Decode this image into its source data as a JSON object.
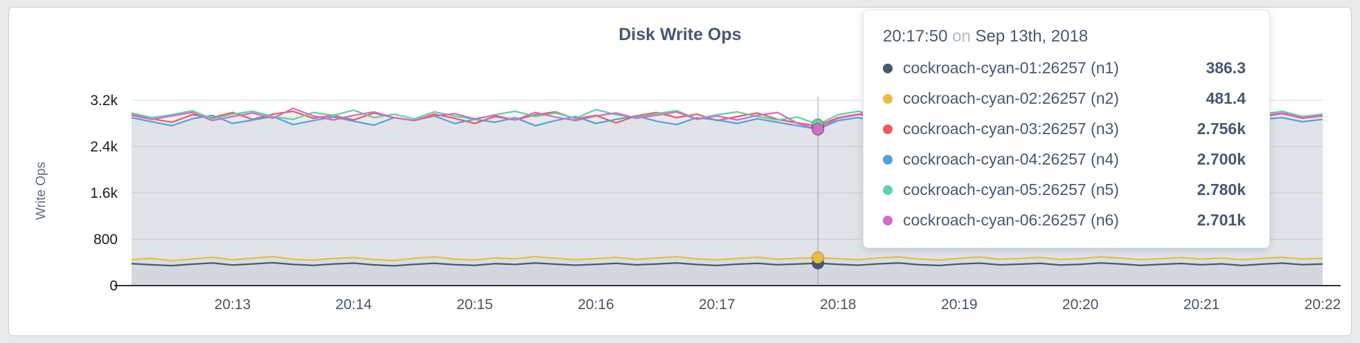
{
  "page": {
    "background": "#e9eaeb"
  },
  "chart_data": {
    "type": "line",
    "title": "Disk Write Ops",
    "ylabel": "Write Ops",
    "ylim": [
      0,
      3200
    ],
    "x_domain_seconds": [
      730,
      1320
    ],
    "sample_interval_seconds": 10,
    "grid": true,
    "area_fill": "rgba(118,126,138,0.055)",
    "axis_color": "#2e2e2e",
    "y_ticks": [
      {
        "value": 0,
        "label": "0"
      },
      {
        "value": 800,
        "label": "800"
      },
      {
        "value": 1600,
        "label": "1.6k"
      },
      {
        "value": 2400,
        "label": "2.4k"
      },
      {
        "value": 3200,
        "label": "3.2k"
      }
    ],
    "x_tick_seconds": [
      780,
      840,
      900,
      960,
      1020,
      1080,
      1140,
      1200,
      1260,
      1320
    ],
    "x_tick_labels": [
      "20:13",
      "20:14",
      "20:15",
      "20:16",
      "20:17",
      "20:18",
      "20:19",
      "20:20",
      "20:21",
      "20:22"
    ],
    "hover": {
      "time_label": "20:17:50",
      "on_label": "on",
      "date_label": "Sep 13th, 2018",
      "x_seconds": 1070,
      "index": 34
    },
    "series": [
      {
        "name": "cockroach-cyan-01:26257 (n1)",
        "color": "#475872",
        "hover_display": "386.3",
        "values": [
          380,
          360,
          345,
          370,
          390,
          355,
          375,
          395,
          365,
          350,
          372,
          388,
          358,
          342,
          368,
          385,
          362,
          350,
          378,
          365,
          390,
          370,
          352,
          366,
          384,
          358,
          372,
          392,
          364,
          348,
          370,
          386,
          360,
          374,
          386.3,
          368,
          352,
          376,
          390,
          362,
          348,
          372,
          388,
          358,
          370,
          384,
          356,
          368,
          392,
          374,
          350,
          366,
          382,
          360,
          376,
          348,
          370,
          388,
          362,
          372
        ]
      },
      {
        "name": "cockroach-cyan-02:26257 (n2)",
        "color": "#eabd3c",
        "hover_display": "481.4",
        "values": [
          450,
          470,
          430,
          460,
          490,
          445,
          475,
          500,
          455,
          440,
          468,
          485,
          450,
          432,
          472,
          495,
          458,
          442,
          478,
          462,
          500,
          470,
          446,
          466,
          488,
          452,
          474,
          498,
          460,
          444,
          468,
          490,
          455,
          472,
          481.4,
          464,
          446,
          476,
          496,
          458,
          442,
          470,
          492,
          456,
          468,
          486,
          450,
          466,
          498,
          474,
          448,
          464,
          484,
          458,
          476,
          446,
          468,
          490,
          460,
          472
        ]
      },
      {
        "name": "cockroach-cyan-03:26257 (n3)",
        "color": "#ea5e5e",
        "hover_display": "2.756k",
        "values": [
          2950,
          2880,
          2820,
          2950,
          2900,
          2990,
          2870,
          2960,
          3010,
          2890,
          2940,
          2860,
          2980,
          2900,
          2850,
          2960,
          2890,
          2800,
          2920,
          2860,
          2950,
          3000,
          2880,
          2940,
          2810,
          2930,
          2990,
          2900,
          2960,
          2850,
          2920,
          2980,
          2870,
          2810,
          2756,
          2900,
          2960,
          2880,
          2990,
          2920,
          2850,
          2930,
          2870,
          2950,
          2890,
          2970,
          2900,
          2840,
          2960,
          2910,
          2850,
          2930,
          2990,
          2880,
          2940,
          2860,
          2920,
          2970,
          2890,
          2930
        ]
      },
      {
        "name": "cockroach-cyan-04:26257 (n4)",
        "color": "#56a0dd",
        "hover_display": "2.700k",
        "values": [
          2900,
          2830,
          2760,
          2880,
          2940,
          2800,
          2860,
          2920,
          2780,
          2850,
          2910,
          2840,
          2770,
          2900,
          2850,
          2930,
          2800,
          2870,
          2820,
          2900,
          2760,
          2850,
          2920,
          2800,
          2870,
          2930,
          2840,
          2780,
          2900,
          2860,
          2800,
          2880,
          2820,
          2760,
          2700,
          2850,
          2900,
          2830,
          2770,
          2880,
          2930,
          2850,
          2790,
          2870,
          2910,
          2820,
          2880,
          2840,
          2780,
          2900,
          2860,
          2800,
          2880,
          2930,
          2850,
          2790,
          2870,
          2900,
          2830,
          2870
        ]
      },
      {
        "name": "cockroach-cyan-05:26257 (n5)",
        "color": "#60d1a3",
        "hover_display": "2.780k",
        "values": [
          2980,
          2900,
          2950,
          3020,
          2880,
          2960,
          3010,
          2920,
          2870,
          2990,
          2940,
          3030,
          2900,
          2960,
          2880,
          3000,
          2930,
          2870,
          2950,
          3010,
          2920,
          2980,
          2890,
          3040,
          2950,
          2900,
          2970,
          3020,
          2880,
          2950,
          3000,
          2920,
          2860,
          2910,
          2780,
          2950,
          3010,
          2930,
          2880,
          2970,
          3020,
          2940,
          2890,
          2960,
          3010,
          2920,
          2870,
          2950,
          3000,
          2930,
          2980,
          2900,
          2950,
          3020,
          2940,
          2880,
          2960,
          3010,
          2920,
          2960
        ]
      },
      {
        "name": "cockroach-cyan-06:26257 (n6)",
        "color": "#d36cc4",
        "hover_display": "2.701k",
        "values": [
          2940,
          2870,
          2930,
          2990,
          2850,
          2920,
          2980,
          2890,
          3060,
          2930,
          2860,
          2940,
          3000,
          2900,
          2850,
          2930,
          2970,
          2880,
          2940,
          2860,
          2990,
          2910,
          2850,
          2930,
          2980,
          2890,
          2940,
          3000,
          2870,
          2930,
          2860,
          2940,
          2990,
          2800,
          2701,
          2890,
          2950,
          3080,
          2900,
          2860,
          2930,
          2980,
          2890,
          2940,
          2870,
          2990,
          2920,
          2850,
          2930,
          2970,
          2890,
          2940,
          2860,
          2990,
          2910,
          2850,
          2930,
          2980,
          2900,
          2940
        ]
      }
    ]
  }
}
